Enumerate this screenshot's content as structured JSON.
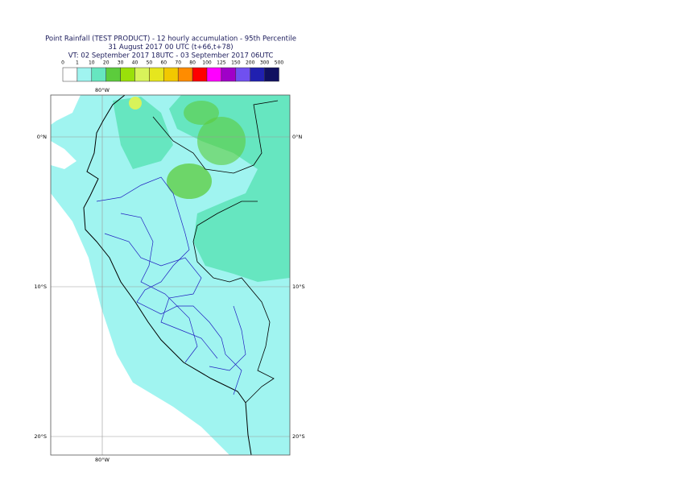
{
  "header": {
    "title": [
      "Point Rainfall (TEST PRODUCT) - 12 hourly accumulation - 95th Percentile",
      "31 August 2017 00 UTC (t+66,t+78)",
      "VT: 02 September 2017 18UTC - 03 September 2017 06UTC"
    ]
  },
  "legend": {
    "ticks": [
      "0",
      "1",
      "10",
      "20",
      "30",
      "40",
      "50",
      "60",
      "70",
      "80",
      "100",
      "125",
      "150",
      "200",
      "300",
      "500"
    ],
    "colors": [
      "#ffffff",
      "#a0f4f0",
      "#66e6c0",
      "#5ccc3c",
      "#9ae00a",
      "#d8f35a",
      "#e6e61e",
      "#f2c800",
      "#ff8c00",
      "#ff0000",
      "#ff00ff",
      "#a000c8",
      "#7050f0",
      "#2020b0",
      "#101060"
    ]
  },
  "map": {
    "lon_labels": [
      "80°W"
    ],
    "lat_labels": [
      "0°N",
      "10°S",
      "20°S"
    ]
  }
}
